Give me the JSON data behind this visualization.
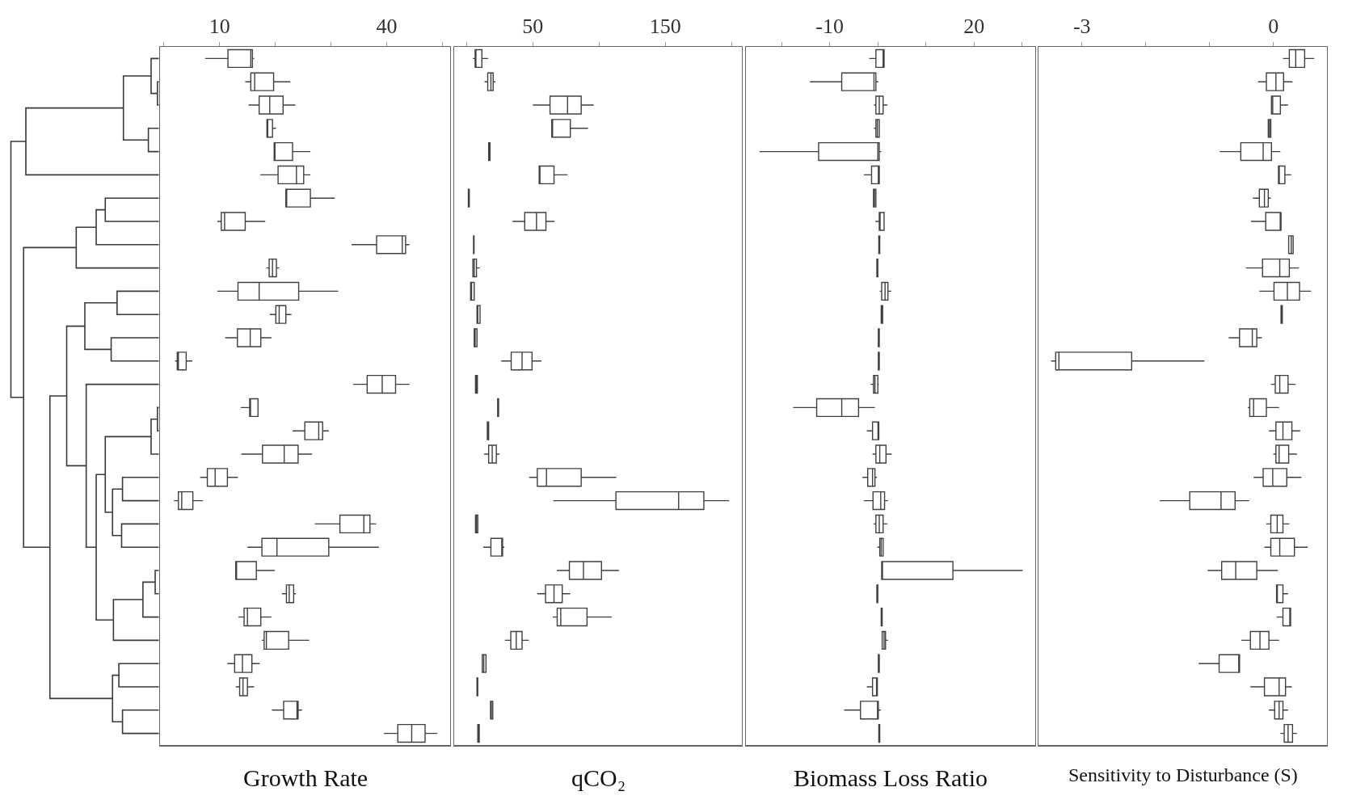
{
  "chart_data": [
    {
      "type": "box",
      "orientation": "horizontal",
      "xlabel": "Growth Rate",
      "tick_labels": "x",
      "categories": [
        null,
        null,
        null,
        null,
        null,
        null,
        null,
        null,
        null,
        null,
        null,
        null,
        null,
        null,
        null,
        null,
        null,
        null,
        null,
        null,
        null,
        null,
        null,
        null,
        null,
        null,
        null,
        null,
        null,
        null
      ],
      "xlim": [
        -0.7,
        51.4
      ],
      "xticks": [
        {
          "value": 0,
          "label": null
        },
        10,
        {
          "value": 20,
          "label": null
        },
        {
          "value": 30,
          "label": null
        },
        40,
        {
          "value": 50,
          "label": null
        }
      ],
      "series": [
        {
          "color": "#404040",
          "boxes": [
            {
              "low": 7.4,
              "q1": 11.5,
              "median": 15.6,
              "q3": 15.9,
              "high": 16.2
            },
            {
              "low": 14.6,
              "q1": 15.6,
              "median": 16.3,
              "q3": 19.7,
              "high": 22.7
            },
            {
              "low": 15.2,
              "q1": 17.1,
              "median": 19.0,
              "q3": 21.4,
              "high": 23.6
            },
            {
              "low": 18.5,
              "q1": 18.5,
              "median": 18.6,
              "q3": 19.5,
              "high": 20.1
            },
            {
              "low": 19.8,
              "q1": 19.8,
              "median": 19.8,
              "q3": 23.1,
              "high": 26.3
            },
            {
              "low": 17.3,
              "q1": 20.5,
              "median": 23.8,
              "q3": 25.1,
              "high": 26.3
            },
            {
              "low": 21.9,
              "q1": 21.9,
              "median": 22.0,
              "q3": 26.3,
              "high": 30.7
            },
            {
              "low": 9.6,
              "q1": 10.3,
              "median": 10.9,
              "q3": 14.6,
              "high": 18.2
            },
            {
              "low": 33.7,
              "q1": 38.2,
              "median": 42.8,
              "q3": 43.4,
              "high": 44.1
            },
            {
              "low": 18.4,
              "q1": 18.9,
              "median": 19.5,
              "q3": 20.2,
              "high": 20.7
            },
            {
              "low": 9.6,
              "q1": 13.3,
              "median": 17.1,
              "q3": 24.2,
              "high": 31.3
            },
            {
              "low": 19.0,
              "q1": 20.1,
              "median": 20.7,
              "q3": 21.9,
              "high": 22.9
            },
            {
              "low": 11.0,
              "q1": 13.2,
              "median": 15.5,
              "q3": 17.4,
              "high": 19.3
            },
            {
              "low": 2.0,
              "q1": 2.4,
              "median": 2.6,
              "q3": 4.0,
              "high": 5.1
            },
            {
              "low": 34.0,
              "q1": 36.5,
              "median": 39.2,
              "q3": 41.6,
              "high": 44.1
            },
            {
              "low": 13.8,
              "q1": 15.4,
              "median": 15.4,
              "q3": 16.9,
              "high": 16.9
            },
            {
              "low": 23.1,
              "q1": 25.3,
              "median": 27.8,
              "q3": 28.5,
              "high": 29.6
            },
            {
              "low": 13.9,
              "q1": 17.7,
              "median": 21.6,
              "q3": 24.1,
              "high": 26.6
            },
            {
              "low": 6.5,
              "q1": 7.8,
              "median": 9.2,
              "q3": 11.4,
              "high": 13.3
            },
            {
              "low": 1.8,
              "q1": 2.6,
              "median": 3.2,
              "q3": 5.2,
              "high": 7.0
            },
            {
              "low": 27.1,
              "q1": 31.6,
              "median": 35.9,
              "q3": 37.0,
              "high": 38.1
            },
            {
              "low": 15.0,
              "q1": 17.6,
              "median": 20.3,
              "q3": 29.6,
              "high": 38.6
            },
            {
              "low": 12.9,
              "q1": 12.9,
              "median": 12.9,
              "q3": 16.6,
              "high": 19.9
            },
            {
              "low": 21.2,
              "q1": 22.0,
              "median": 22.5,
              "q3": 23.3,
              "high": 23.7
            },
            {
              "low": 13.4,
              "q1": 14.4,
              "median": 15.0,
              "q3": 17.4,
              "high": 19.3
            },
            {
              "low": 17.6,
              "q1": 18.0,
              "median": 18.4,
              "q3": 22.4,
              "high": 26.1
            },
            {
              "low": 11.4,
              "q1": 12.7,
              "median": 14.1,
              "q3": 15.8,
              "high": 17.2
            },
            {
              "low": 12.9,
              "q1": 13.6,
              "median": 14.2,
              "q3": 15.0,
              "high": 16.2
            },
            {
              "low": 19.4,
              "q1": 21.5,
              "median": 23.9,
              "q3": 24.1,
              "high": 24.8
            },
            {
              "low": 39.5,
              "q1": 42.0,
              "median": 44.5,
              "q3": 46.9,
              "high": 49.1
            }
          ]
        }
      ]
    },
    {
      "type": "box",
      "orientation": "horizontal",
      "xlabel": "qCO₂",
      "tick_labels": "x",
      "categories": [
        null,
        null,
        null,
        null,
        null,
        null,
        null,
        null,
        null,
        null,
        null,
        null,
        null,
        null,
        null,
        null,
        null,
        null,
        null,
        null,
        null,
        null,
        null,
        null,
        null,
        null,
        null,
        null,
        null,
        null
      ],
      "xlim": [
        -9.3,
        207.7
      ],
      "xticks": [
        {
          "value": 0,
          "label": null
        },
        50,
        {
          "value": 100,
          "label": null
        },
        150,
        {
          "value": 200,
          "label": null
        }
      ],
      "series": [
        {
          "color": "#404040",
          "boxes": [
            {
              "low": 4.8,
              "q1": 6.5,
              "median": 7.0,
              "q3": 11.6,
              "high": 16.4
            },
            {
              "low": 13.6,
              "q1": 16.0,
              "median": 18.4,
              "q3": 20.1,
              "high": 21.8
            },
            {
              "low": 50.0,
              "q1": 63.0,
              "median": 76.2,
              "q3": 86.5,
              "high": 96.0
            },
            {
              "low": 64.3,
              "q1": 64.3,
              "median": 64.3,
              "q3": 78.3,
              "high": 91.6
            },
            {
              "low": 16.7,
              "q1": 16.7,
              "median": 17.4,
              "q3": 17.7,
              "high": 17.7
            },
            {
              "low": 54.8,
              "q1": 54.8,
              "median": 54.8,
              "q3": 66.0,
              "high": 76.2
            },
            {
              "low": 1.4,
              "q1": 1.4,
              "median": 1.7,
              "q3": 2.1,
              "high": 2.1
            },
            {
              "low": 34.7,
              "q1": 43.9,
              "median": 52.8,
              "q3": 59.9,
              "high": 66.4
            },
            {
              "low": 5.3,
              "q1": 5.3,
              "median": 5.5,
              "q3": 5.7,
              "high": 5.7
            },
            {
              "low": 4.8,
              "q1": 4.8,
              "median": 5.8,
              "q3": 7.5,
              "high": 9.9
            },
            {
              "low": 3.1,
              "q1": 3.1,
              "median": 3.8,
              "q3": 5.8,
              "high": 5.8
            },
            {
              "low": 7.9,
              "q1": 7.9,
              "median": 8.5,
              "q3": 10.2,
              "high": 10.2
            },
            {
              "low": 5.8,
              "q1": 5.8,
              "median": 6.5,
              "q3": 7.9,
              "high": 7.9
            },
            {
              "low": 26.2,
              "q1": 33.7,
              "median": 41.9,
              "q3": 49.4,
              "high": 56.5
            },
            {
              "low": 6.8,
              "q1": 6.8,
              "median": 7.5,
              "q3": 8.2,
              "high": 8.2
            },
            {
              "low": 23.5,
              "q1": 23.5,
              "median": 23.8,
              "q3": 24.2,
              "high": 24.2
            },
            {
              "low": 15.7,
              "q1": 15.7,
              "median": 16.0,
              "q3": 16.7,
              "high": 16.7
            },
            {
              "low": 13.3,
              "q1": 16.7,
              "median": 19.4,
              "q3": 22.5,
              "high": 24.9
            },
            {
              "low": 47.3,
              "q1": 53.4,
              "median": 60.3,
              "q3": 86.5,
              "high": 113.0
            },
            {
              "low": 65.4,
              "q1": 112.7,
              "median": 160.0,
              "q3": 179.0,
              "high": 198.1
            },
            {
              "low": 6.8,
              "q1": 6.8,
              "median": 7.5,
              "q3": 8.5,
              "high": 8.5
            },
            {
              "low": 12.6,
              "q1": 18.4,
              "median": 26.9,
              "q3": 27.2,
              "high": 28.6
            },
            {
              "low": 68.1,
              "q1": 77.6,
              "median": 88.2,
              "q3": 101.8,
              "high": 115.0
            },
            {
              "low": 53.4,
              "q1": 59.6,
              "median": 66.0,
              "q3": 72.2,
              "high": 78.3
            },
            {
              "low": 65.0,
              "q1": 68.4,
              "median": 71.1,
              "q3": 90.9,
              "high": 109.6
            },
            {
              "low": 29.0,
              "q1": 33.4,
              "median": 37.5,
              "q3": 41.9,
              "high": 47.0
            },
            {
              "low": 11.9,
              "q1": 11.9,
              "median": 13.0,
              "q3": 14.7,
              "high": 14.7
            },
            {
              "low": 7.9,
              "q1": 7.9,
              "median": 8.2,
              "q3": 8.5,
              "high": 8.5
            },
            {
              "low": 18.1,
              "q1": 18.1,
              "median": 18.7,
              "q3": 19.8,
              "high": 19.8
            },
            {
              "low": 8.5,
              "q1": 8.5,
              "median": 8.9,
              "q3": 9.6,
              "high": 9.6
            }
          ]
        }
      ]
    },
    {
      "type": "box",
      "orientation": "horizontal",
      "xlabel": "Biomass Loss Ratio",
      "tick_labels": "x",
      "categories": [
        null,
        null,
        null,
        null,
        null,
        null,
        null,
        null,
        null,
        null,
        null,
        null,
        null,
        null,
        null,
        null,
        null,
        null,
        null,
        null,
        null,
        null,
        null,
        null,
        null,
        null,
        null,
        null,
        null,
        null
      ],
      "xlim": [
        -27.4,
        32.7
      ],
      "xticks": [
        {
          "value": -20,
          "label": null
        },
        -10,
        {
          "value": 0,
          "label": null
        },
        {
          "value": 10,
          "label": null
        },
        20,
        {
          "value": 30,
          "label": null
        }
      ],
      "series": [
        {
          "color": "#404040",
          "boxes": [
            {
              "low": -1.8,
              "q1": -0.4,
              "median": 1.1,
              "q3": 1.3,
              "high": 1.3
            },
            {
              "low": -14.1,
              "q1": -7.5,
              "median": -0.8,
              "q3": -0.4,
              "high": 0.1
            },
            {
              "low": -0.8,
              "q1": -0.4,
              "median": 0.3,
              "q3": 1.1,
              "high": 2.0
            },
            {
              "low": -0.8,
              "q1": -0.4,
              "median": -0.1,
              "q3": 0.3,
              "high": 0.3
            },
            {
              "low": -24.6,
              "q1": -12.3,
              "median": 0.0,
              "q3": 0.3,
              "high": 0.7
            },
            {
              "low": -2.9,
              "q1": -1.3,
              "median": 0.1,
              "q3": 0.3,
              "high": 0.3
            },
            {
              "low": -0.9,
              "q1": -0.9,
              "median": -0.7,
              "q3": -0.4,
              "high": -0.4
            },
            {
              "low": -0.5,
              "q1": 0.3,
              "median": 0.4,
              "q3": 1.3,
              "high": 1.3
            },
            {
              "low": 0.2,
              "q1": 0.2,
              "median": 0.3,
              "q3": 0.4,
              "high": 0.4
            },
            {
              "low": -0.2,
              "q1": -0.2,
              "median": -0.1,
              "q3": 0.0,
              "high": 0.0
            },
            {
              "low": 0.4,
              "q1": 0.8,
              "median": 1.5,
              "q3": 2.1,
              "high": 2.8
            },
            {
              "low": 0.7,
              "q1": 0.7,
              "median": 0.8,
              "q3": 1.0,
              "high": 1.0
            },
            {
              "low": 0.1,
              "q1": 0.1,
              "median": 0.2,
              "q3": 0.3,
              "high": 0.3
            },
            {
              "low": 0.1,
              "q1": 0.1,
              "median": 0.2,
              "q3": 0.3,
              "high": 0.3
            },
            {
              "low": -1.5,
              "q1": -0.9,
              "median": -0.6,
              "q3": 0.0,
              "high": 0.2
            },
            {
              "low": -17.6,
              "q1": -12.7,
              "median": -7.5,
              "q3": -4.0,
              "high": -0.6
            },
            {
              "low": -2.3,
              "q1": -1.1,
              "median": 0.1,
              "q3": 0.2,
              "high": 0.2
            },
            {
              "low": -1.1,
              "q1": -0.4,
              "median": 0.4,
              "q3": 1.7,
              "high": 2.9
            },
            {
              "low": -3.2,
              "q1": -2.1,
              "median": -1.1,
              "q3": -0.6,
              "high": -0.2
            },
            {
              "low": -2.9,
              "q1": -1.0,
              "median": 0.6,
              "q3": 1.4,
              "high": 2.1
            },
            {
              "low": -0.9,
              "q1": -0.4,
              "median": 0.3,
              "q3": 1.1,
              "high": 2.0
            },
            {
              "low": -0.1,
              "q1": 0.4,
              "median": 0.7,
              "q3": 1.1,
              "high": 1.1
            },
            {
              "low": 0.8,
              "q1": 0.8,
              "median": 0.8,
              "q3": 15.6,
              "high": 30.1
            },
            {
              "low": -0.2,
              "q1": -0.2,
              "median": -0.1,
              "q3": 0.0,
              "high": 0.0
            },
            {
              "low": 0.7,
              "q1": 0.7,
              "median": 0.8,
              "q3": 0.9,
              "high": 0.9
            },
            {
              "low": 0.9,
              "q1": 0.9,
              "median": 1.3,
              "q3": 1.6,
              "high": 2.1
            },
            {
              "low": 0.1,
              "q1": 0.1,
              "median": 0.2,
              "q3": 0.3,
              "high": 0.3
            },
            {
              "low": -2.3,
              "q1": -1.1,
              "median": -0.2,
              "q3": -0.1,
              "high": -0.1
            },
            {
              "low": -7.0,
              "q1": -3.6,
              "median": 0.0,
              "q3": 0.1,
              "high": 0.6
            },
            {
              "low": 0.2,
              "q1": 0.2,
              "median": 0.3,
              "q3": 0.4,
              "high": 0.4
            }
          ]
        }
      ]
    },
    {
      "type": "box",
      "orientation": "horizontal",
      "xlabel": "Sensitivity to Disturbance (S)",
      "tick_labels": "x",
      "categories": [
        null,
        null,
        null,
        null,
        null,
        null,
        null,
        null,
        null,
        null,
        null,
        null,
        null,
        null,
        null,
        null,
        null,
        null,
        null,
        null,
        null,
        null,
        null,
        null,
        null,
        null,
        null,
        null,
        null,
        null
      ],
      "xlim": [
        -3.68,
        0.84
      ],
      "xticks": [
        -3,
        {
          "value": -2,
          "label": null
        },
        {
          "value": -1,
          "label": null
        },
        0
      ],
      "series": [
        {
          "color": "#404040",
          "boxes": [
            {
              "low": 0.15,
              "q1": 0.25,
              "median": 0.35,
              "q3": 0.49,
              "high": 0.64
            },
            {
              "low": -0.24,
              "q1": -0.11,
              "median": 0.04,
              "q3": 0.16,
              "high": 0.3
            },
            {
              "low": -0.03,
              "q1": -0.03,
              "median": -0.01,
              "q3": 0.11,
              "high": 0.23
            },
            {
              "low": -0.08,
              "q1": -0.08,
              "median": -0.06,
              "q3": -0.04,
              "high": -0.04
            },
            {
              "low": -0.84,
              "q1": -0.51,
              "median": -0.16,
              "q3": -0.03,
              "high": 0.11
            },
            {
              "low": 0.08,
              "q1": 0.08,
              "median": 0.09,
              "q3": 0.18,
              "high": 0.28
            },
            {
              "low": -0.32,
              "q1": -0.22,
              "median": -0.14,
              "q3": -0.08,
              "high": -0.04
            },
            {
              "low": -0.35,
              "q1": -0.12,
              "median": 0.11,
              "q3": 0.12,
              "high": 0.12
            },
            {
              "low": 0.24,
              "q1": 0.24,
              "median": 0.28,
              "q3": 0.31,
              "high": 0.31
            },
            {
              "low": -0.43,
              "q1": -0.17,
              "median": 0.1,
              "q3": 0.25,
              "high": 0.4
            },
            {
              "low": -0.22,
              "q1": 0.01,
              "median": 0.22,
              "q3": 0.41,
              "high": 0.59
            },
            {
              "low": 0.12,
              "q1": 0.12,
              "median": 0.13,
              "q3": 0.14,
              "high": 0.14
            },
            {
              "low": -0.7,
              "q1": -0.53,
              "median": -0.33,
              "q3": -0.26,
              "high": -0.18
            },
            {
              "low": -3.48,
              "q1": -3.41,
              "median": -3.36,
              "q3": -2.22,
              "high": -1.08
            },
            {
              "low": -0.04,
              "q1": 0.03,
              "median": 0.1,
              "q3": 0.23,
              "high": 0.35
            },
            {
              "low": -0.4,
              "q1": -0.37,
              "median": -0.31,
              "q3": -0.11,
              "high": 0.09
            },
            {
              "low": -0.07,
              "q1": 0.04,
              "median": 0.15,
              "q3": 0.29,
              "high": 0.42
            },
            {
              "low": 0.0,
              "q1": 0.04,
              "median": 0.09,
              "q3": 0.24,
              "high": 0.37
            },
            {
              "low": -0.31,
              "q1": -0.16,
              "median": -0.01,
              "q3": 0.21,
              "high": 0.44
            },
            {
              "low": -1.78,
              "q1": -1.31,
              "median": -0.82,
              "q3": -0.6,
              "high": -0.38
            },
            {
              "low": -0.11,
              "q1": -0.04,
              "median": 0.06,
              "q3": 0.15,
              "high": 0.25
            },
            {
              "low": -0.14,
              "q1": -0.04,
              "median": 0.1,
              "q3": 0.33,
              "high": 0.54
            },
            {
              "low": -1.03,
              "q1": -0.81,
              "median": -0.59,
              "q3": -0.26,
              "high": 0.07
            },
            {
              "low": 0.05,
              "q1": 0.05,
              "median": 0.06,
              "q3": 0.15,
              "high": 0.23
            },
            {
              "low": 0.05,
              "q1": 0.15,
              "median": 0.26,
              "q3": 0.27,
              "high": 0.27
            },
            {
              "low": -0.5,
              "q1": -0.36,
              "median": -0.21,
              "q3": -0.07,
              "high": 0.09
            },
            {
              "low": -1.17,
              "q1": -0.85,
              "median": -0.53,
              "q3": -0.53,
              "high": -0.53
            },
            {
              "low": -0.36,
              "q1": -0.14,
              "median": 0.09,
              "q3": 0.19,
              "high": 0.29
            },
            {
              "low": -0.07,
              "q1": 0.02,
              "median": 0.09,
              "q3": 0.15,
              "high": 0.23
            },
            {
              "low": 0.11,
              "q1": 0.17,
              "median": 0.23,
              "q3": 0.3,
              "high": 0.37
            }
          ]
        }
      ]
    }
  ]
}
